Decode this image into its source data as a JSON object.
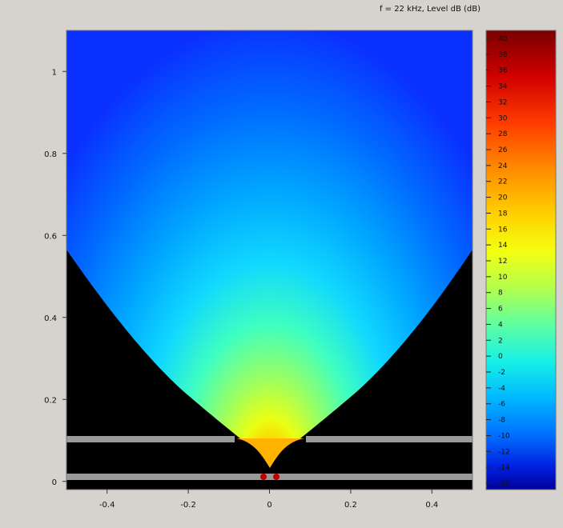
{
  "chart_data": {
    "type": "heatmap",
    "title": "f = 22 kHz, Level dB  (dB)",
    "xlabel": "",
    "ylabel": "",
    "xlim": [
      -0.5,
      0.5
    ],
    "ylim": [
      -0.02,
      1.1
    ],
    "x_ticks": [
      "-0.4",
      "-0.2",
      "0",
      "0.2",
      "0.4"
    ],
    "x_tick_values": [
      -0.4,
      -0.2,
      0,
      0.2,
      0.4
    ],
    "y_ticks": [
      "0",
      "0.2",
      "0.4",
      "0.6",
      "0.8",
      "1"
    ],
    "y_tick_values": [
      0,
      0.2,
      0.4,
      0.6,
      0.8,
      1.0
    ],
    "colorbar": {
      "min": -16,
      "max": 40,
      "step": 2,
      "ticks": [
        "40",
        "38",
        "36",
        "34",
        "32",
        "30",
        "28",
        "26",
        "24",
        "22",
        "20",
        "18",
        "16",
        "14",
        "12",
        "10",
        "8",
        "6",
        "4",
        "2",
        "0",
        "-2",
        "-4",
        "-6",
        "-8",
        "-10",
        "-12",
        "-14",
        "-16"
      ],
      "colormap": "jet"
    },
    "field": {
      "description_level_near_source_dB": 26,
      "level_at_top_dB": -10,
      "source_position": [
        0,
        0.03
      ]
    },
    "structure": {
      "upper_plate_y": 0.09,
      "lower_plate_y": 0.0,
      "opening_half_width": 0.09,
      "plate_color": "#9a9a9a"
    },
    "grid": false
  }
}
